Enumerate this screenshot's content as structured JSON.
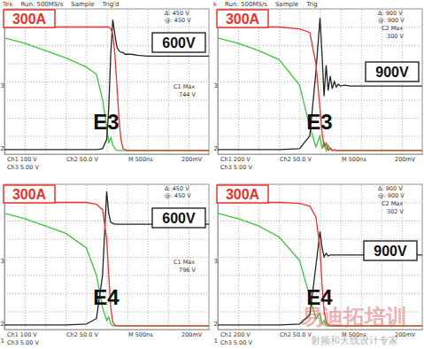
{
  "chart_data": [
    {
      "type": "line",
      "title": "E3",
      "current_label": "300A",
      "voltage_label": "600V",
      "header": [
        "Tek",
        "Run: 500MS/s",
        "Sample",
        "Trig'd"
      ],
      "cursor_readout": [
        "Δ: 450 V",
        "@: 450 V"
      ],
      "measurement": [
        "C1 Max",
        "744 V"
      ],
      "status": [
        "Ch1 100 V",
        "Ch2 50.0 V",
        "M 500ns",
        "200mV",
        "Ch3 5.00 V"
      ],
      "markers": [
        "3",
        "2"
      ],
      "xlim": [
        0,
        10
      ],
      "ylim": [
        0,
        8
      ],
      "xticks": [
        0,
        1,
        2,
        3,
        4,
        5,
        6,
        7,
        8,
        9,
        10
      ],
      "yticks": [
        0,
        1,
        2,
        3,
        4,
        5,
        6,
        7,
        8
      ],
      "grid": true,
      "tick_labels": false,
      "x": [
        0,
        1,
        2,
        3,
        4,
        4.5,
        4.8,
        5.0,
        5.1,
        5.2,
        5.3,
        5.4,
        5.5,
        5.6,
        5.7,
        5.8,
        5.9,
        6.0,
        6.2,
        6.5,
        7,
        8,
        9,
        10
      ],
      "series": [
        {
          "color": "#3cc43c",
          "values": [
            6.4,
            6.1,
            5.7,
            5.3,
            4.8,
            4.4,
            3.0,
            1.5,
            0.6,
            0.9,
            0.5,
            0.3,
            0.2,
            0.2,
            0.2,
            0.2,
            0.2,
            0.2,
            0.2,
            0.2,
            0.2,
            0.2,
            0.2,
            0.2
          ]
        },
        {
          "color": "#222222",
          "values": [
            0.25,
            0.25,
            0.25,
            0.25,
            0.25,
            0.25,
            0.3,
            0.8,
            2.5,
            5.5,
            7.4,
            6.6,
            5.9,
            5.7,
            5.6,
            5.6,
            5.5,
            5.5,
            5.5,
            5.45,
            5.4,
            5.4,
            5.4,
            5.4
          ]
        },
        {
          "color": "#e8322e",
          "values": [
            7.0,
            7.0,
            7.0,
            7.0,
            7.0,
            7.0,
            7.0,
            7.0,
            7.0,
            6.9,
            6.6,
            5.5,
            3.8,
            2.0,
            0.8,
            0.3,
            0.25,
            0.2,
            0.2,
            0.2,
            0.2,
            0.2,
            0.2,
            0.2
          ]
        }
      ]
    },
    {
      "type": "line",
      "title": "E3",
      "current_label": "300A",
      "voltage_label": "900V",
      "header": [
        "k",
        "Run: 500MS/s",
        "Sample",
        "Trig"
      ],
      "cursor_readout": [
        "Δ: 900 V",
        "@: 900 V"
      ],
      "measurement": [
        "C2 Max",
        "300 V"
      ],
      "status": [
        "Ch1 200 V",
        "Ch2 50.0 V",
        "M 500ns",
        "200mV",
        "Ch3 5.00 V"
      ],
      "markers": [
        "3",
        "2"
      ],
      "xlim": [
        0,
        10
      ],
      "ylim": [
        0,
        8
      ],
      "xticks": [
        0,
        1,
        2,
        3,
        4,
        5,
        6,
        7,
        8,
        9,
        10
      ],
      "yticks": [
        0,
        1,
        2,
        3,
        4,
        5,
        6,
        7,
        8
      ],
      "grid": true,
      "tick_labels": false,
      "x": [
        0,
        1,
        2,
        3,
        4,
        4.5,
        4.8,
        5.0,
        5.1,
        5.2,
        5.3,
        5.4,
        5.5,
        5.6,
        5.7,
        5.8,
        5.9,
        6.0,
        6.2,
        6.5,
        7,
        8,
        9,
        10
      ],
      "series": [
        {
          "color": "#3cc43c",
          "values": [
            6.4,
            6.1,
            5.7,
            5.2,
            3.8,
            1.5,
            0.4,
            1.0,
            0.3,
            0.7,
            0.2,
            0.5,
            0.25,
            0.2,
            0.2,
            0.2,
            0.2,
            0.2,
            0.2,
            0.2,
            0.2,
            0.2,
            0.2,
            0.2
          ]
        },
        {
          "color": "#222222",
          "values": [
            0.25,
            0.25,
            0.25,
            0.25,
            0.3,
            1.0,
            4.5,
            7.5,
            5.5,
            3.2,
            4.9,
            3.5,
            4.3,
            3.6,
            4.0,
            3.7,
            3.85,
            3.75,
            3.8,
            3.75,
            3.75,
            3.75,
            3.75,
            3.75
          ]
        },
        {
          "color": "#e8322e",
          "values": [
            7.0,
            7.0,
            7.0,
            7.0,
            6.9,
            6.7,
            5.0,
            2.5,
            1.2,
            0.4,
            0.6,
            0.2,
            0.35,
            0.2,
            0.25,
            0.2,
            0.2,
            0.2,
            0.2,
            0.2,
            0.2,
            0.2,
            0.2,
            0.2
          ]
        }
      ]
    },
    {
      "type": "line",
      "title": "E4",
      "current_label": "300A",
      "voltage_label": "600V",
      "cursor_readout": [
        "Δ: 450 V",
        "@: 450 V"
      ],
      "measurement": [
        "C1 Max",
        "796 V"
      ],
      "status": [
        "Ch1 100 V",
        "Ch2 50.0 V",
        "M 500ns",
        "200mV",
        "Ch3 5.00 V"
      ],
      "markers": [
        "3",
        "2",
        "1"
      ],
      "xlim": [
        0,
        10
      ],
      "ylim": [
        0,
        8
      ],
      "xticks": [
        0,
        1,
        2,
        3,
        4,
        5,
        6,
        7,
        8,
        9,
        10
      ],
      "yticks": [
        0,
        1,
        2,
        3,
        4,
        5,
        6,
        7,
        8
      ],
      "grid": true,
      "tick_labels": false,
      "x": [
        0,
        1,
        2,
        3,
        4,
        4.5,
        4.8,
        5.0,
        5.1,
        5.2,
        5.3,
        5.4,
        5.5,
        5.6,
        5.7,
        5.8,
        5.9,
        6.0,
        6.2,
        6.5,
        7,
        8,
        9,
        10
      ],
      "series": [
        {
          "color": "#3cc43c",
          "values": [
            6.4,
            6.1,
            5.7,
            5.3,
            4.5,
            3.0,
            1.2,
            0.5,
            0.7,
            0.3,
            0.2,
            0.2,
            0.2,
            0.2,
            0.2,
            0.2,
            0.2,
            0.2,
            0.2,
            0.2,
            0.2,
            0.2,
            0.2,
            0.2
          ]
        },
        {
          "color": "#222222",
          "values": [
            0.25,
            0.25,
            0.25,
            0.25,
            0.3,
            0.6,
            3.0,
            7.6,
            6.4,
            5.9,
            5.85,
            5.8,
            5.8,
            5.8,
            5.8,
            5.8,
            5.8,
            5.8,
            5.8,
            5.8,
            5.8,
            5.8,
            5.8,
            5.8
          ]
        },
        {
          "color": "#e8322e",
          "values": [
            7.0,
            7.0,
            7.0,
            7.0,
            7.0,
            6.9,
            6.6,
            5.0,
            3.0,
            1.2,
            0.4,
            0.25,
            0.2,
            0.2,
            0.2,
            0.2,
            0.2,
            0.2,
            0.2,
            0.2,
            0.2,
            0.2,
            0.2,
            0.2
          ]
        }
      ]
    },
    {
      "type": "line",
      "title": "E4",
      "current_label": "300A",
      "voltage_label": "900V",
      "cursor_readout": [
        "Δ: 900 V",
        "@: 900 V"
      ],
      "measurement": [
        "C2 Max",
        "302 V"
      ],
      "status": [
        "Ch1 200 V",
        "Ch2 50.0 V",
        "M 500ns",
        "200mV",
        "Ch3 5.00 V"
      ],
      "markers": [
        "3",
        "2",
        "1"
      ],
      "xlim": [
        0,
        10
      ],
      "ylim": [
        0,
        8
      ],
      "xticks": [
        0,
        1,
        2,
        3,
        4,
        5,
        6,
        7,
        8,
        9,
        10
      ],
      "yticks": [
        0,
        1,
        2,
        3,
        4,
        5,
        6,
        7,
        8
      ],
      "grid": true,
      "tick_labels": false,
      "x": [
        0,
        1,
        2,
        3,
        4,
        4.5,
        4.8,
        5.0,
        5.1,
        5.2,
        5.3,
        5.4,
        5.5,
        5.6,
        5.7,
        5.8,
        5.9,
        6.0,
        6.2,
        6.5,
        7,
        8,
        9,
        10
      ],
      "series": [
        {
          "color": "#3cc43c",
          "values": [
            6.4,
            6.1,
            5.7,
            5.1,
            3.8,
            1.8,
            0.6,
            0.9,
            0.3,
            0.5,
            0.2,
            0.2,
            0.2,
            0.2,
            0.2,
            0.2,
            0.2,
            0.2,
            0.2,
            0.2,
            0.2,
            0.2,
            0.2,
            0.2
          ]
        },
        {
          "color": "#222222",
          "values": [
            0.25,
            0.25,
            0.25,
            0.25,
            0.3,
            0.8,
            3.5,
            5.4,
            4.5,
            4.0,
            4.2,
            4.05,
            4.1,
            4.1,
            4.1,
            4.1,
            4.1,
            4.1,
            4.1,
            4.1,
            4.1,
            4.1,
            4.1,
            4.1
          ]
        },
        {
          "color": "#e8322e",
          "values": [
            7.0,
            7.0,
            7.0,
            7.0,
            6.95,
            6.8,
            6.2,
            4.5,
            2.5,
            1.0,
            0.4,
            0.25,
            0.2,
            0.2,
            0.2,
            0.2,
            0.2,
            0.2,
            0.2,
            0.2,
            0.2,
            0.2,
            0.2,
            0.2
          ]
        }
      ]
    }
  ],
  "watermark": [
    "易迪拓培训",
    "射频和天线设计专家"
  ]
}
